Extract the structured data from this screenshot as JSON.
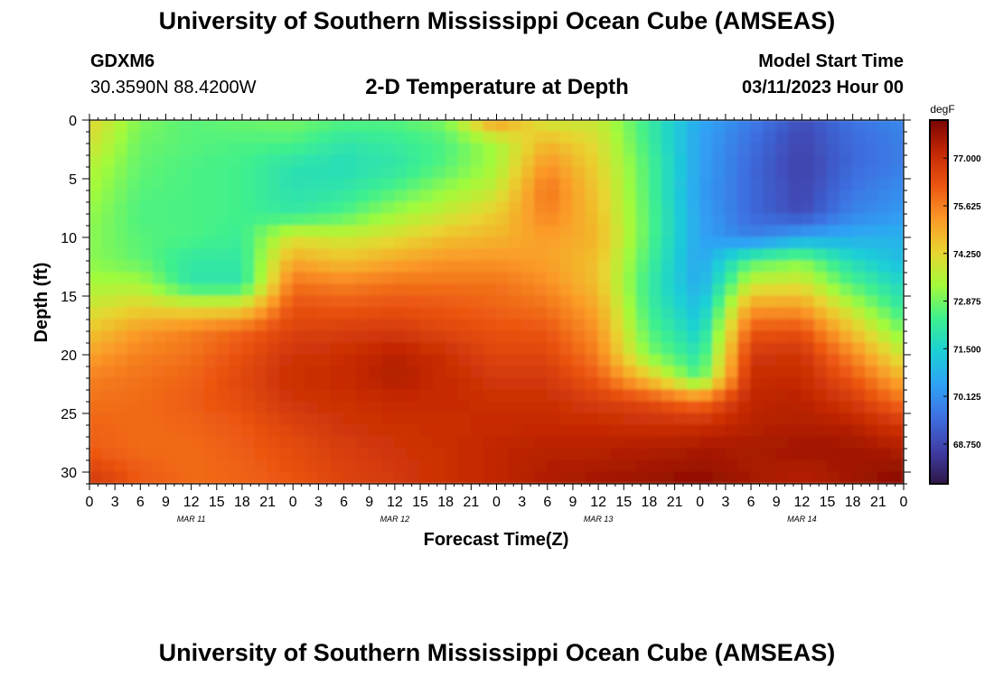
{
  "page": {
    "title_top": "University of Southern Mississippi Ocean Cube (AMSEAS)",
    "title_bottom": "University of Southern Mississippi Ocean Cube (AMSEAS)",
    "station_id": "GDXM6",
    "station_coords": "30.3590N  88.4200W",
    "model_start_label": "Model Start Time",
    "model_start_value": "03/11/2023 Hour 00",
    "chart_title": "2-D Temperature at Depth"
  },
  "chart_data": {
    "type": "heatmap",
    "title": "2-D Temperature at Depth",
    "xlabel": "Forecast Time(Z)",
    "ylabel": "Depth (ft)",
    "x_tick_labels": [
      "0",
      "3",
      "6",
      "9",
      "12",
      "15",
      "18",
      "21",
      "0",
      "3",
      "6",
      "9",
      "12",
      "15",
      "18",
      "21",
      "0",
      "3",
      "6",
      "9",
      "12",
      "15",
      "18",
      "21",
      "0",
      "3",
      "6",
      "9",
      "12",
      "15",
      "18",
      "21",
      "0"
    ],
    "x_range_hours": [
      0,
      96
    ],
    "day_labels": [
      {
        "label": "MAR 11",
        "hour": 12
      },
      {
        "label": "MAR 12",
        "hour": 36
      },
      {
        "label": "MAR 13",
        "hour": 60
      },
      {
        "label": "MAR 14",
        "hour": 84
      }
    ],
    "y_ticks": [
      0,
      5,
      10,
      15,
      20,
      25,
      30
    ],
    "y_range_ft": [
      0,
      31
    ],
    "colorbar": {
      "unit": "degF",
      "range": [
        67.6,
        78.1
      ],
      "ticks": [
        "77.000",
        "75.625",
        "74.250",
        "72.875",
        "71.500",
        "70.125",
        "68.750"
      ],
      "colors": [
        "#2e1747",
        "#3f3da6",
        "#3e6fe0",
        "#2fa2f5",
        "#1bd0d5",
        "#3ef08e",
        "#a3fb3a",
        "#e8d530",
        "#fb9a28",
        "#ec5611",
        "#c42803",
        "#7a0403"
      ]
    },
    "depths_ft": [
      0,
      2,
      4,
      6,
      8,
      10,
      12,
      14,
      16,
      18,
      20,
      22,
      24,
      26,
      28,
      30,
      31
    ],
    "times_h": [
      0,
      6,
      12,
      18,
      24,
      30,
      36,
      42,
      48,
      54,
      60,
      66,
      72,
      78,
      84,
      90,
      96
    ],
    "values_degF": [
      [
        74.3,
        73.0,
        72.6,
        72.8,
        72.9,
        72.6,
        72.6,
        73.0,
        75.4,
        73.8,
        73.8,
        72.2,
        70.6,
        69.8,
        68.9,
        69.6,
        70.0
      ],
      [
        74.0,
        72.8,
        72.6,
        72.5,
        72.5,
        72.0,
        72.2,
        72.5,
        73.4,
        74.8,
        74.1,
        72.3,
        70.5,
        69.5,
        68.7,
        69.4,
        69.8
      ],
      [
        73.6,
        72.7,
        72.5,
        72.4,
        71.9,
        71.8,
        72.0,
        72.6,
        73.4,
        75.4,
        74.3,
        72.5,
        70.5,
        69.4,
        68.6,
        69.4,
        69.8
      ],
      [
        73.4,
        72.6,
        72.5,
        72.4,
        71.9,
        72.0,
        72.5,
        73.2,
        73.8,
        75.8,
        74.5,
        72.5,
        70.4,
        69.4,
        68.7,
        69.6,
        70.1
      ],
      [
        73.2,
        72.5,
        72.5,
        72.4,
        72.1,
        72.5,
        73.3,
        73.8,
        74.4,
        75.6,
        74.6,
        72.6,
        70.5,
        69.4,
        68.8,
        69.9,
        70.3
      ],
      [
        73.1,
        72.6,
        72.5,
        72.3,
        74.0,
        73.8,
        74.1,
        74.6,
        74.8,
        75.2,
        74.8,
        72.6,
        70.5,
        69.8,
        70.5,
        70.7,
        70.8
      ],
      [
        73.1,
        72.7,
        72.1,
        72.1,
        75.0,
        74.6,
        75.0,
        75.3,
        75.3,
        75.1,
        74.6,
        72.4,
        70.5,
        72.5,
        73.0,
        71.7,
        71.0
      ],
      [
        73.4,
        73.4,
        72.0,
        72.0,
        75.8,
        75.6,
        75.8,
        75.8,
        75.8,
        75.4,
        74.6,
        72.2,
        70.6,
        73.8,
        74.0,
        72.5,
        71.6
      ],
      [
        73.9,
        74.3,
        74.1,
        74.2,
        76.3,
        76.2,
        76.3,
        76.2,
        76.0,
        75.8,
        75.0,
        72.3,
        71.0,
        75.2,
        75.2,
        73.6,
        72.1
      ],
      [
        74.5,
        75.2,
        75.6,
        76.0,
        76.6,
        76.7,
        76.8,
        76.5,
        76.3,
        76.2,
        75.3,
        72.6,
        71.4,
        76.2,
        76.3,
        74.6,
        72.9
      ],
      [
        75.1,
        75.6,
        75.8,
        76.3,
        76.9,
        77.0,
        77.3,
        77.0,
        76.5,
        76.5,
        75.6,
        73.0,
        71.9,
        76.8,
        76.9,
        75.5,
        73.8
      ],
      [
        75.6,
        75.8,
        76.0,
        76.5,
        77.0,
        77.1,
        77.4,
        77.1,
        76.8,
        76.8,
        76.1,
        74.5,
        72.5,
        77.1,
        77.1,
        76.2,
        74.8
      ],
      [
        75.8,
        75.9,
        76.1,
        76.4,
        76.9,
        77.0,
        77.1,
        77.1,
        77.0,
        77.0,
        76.7,
        76.4,
        75.8,
        77.2,
        77.3,
        76.8,
        75.8
      ],
      [
        76.0,
        75.9,
        76.0,
        76.2,
        76.6,
        76.9,
        77.0,
        77.0,
        77.1,
        77.1,
        77.1,
        77.0,
        77.0,
        77.3,
        77.4,
        77.3,
        76.8
      ],
      [
        76.1,
        75.9,
        75.9,
        76.1,
        76.4,
        76.7,
        76.9,
        77.0,
        77.2,
        77.3,
        77.3,
        77.4,
        77.5,
        77.5,
        77.6,
        77.6,
        77.4
      ],
      [
        76.6,
        76.1,
        75.9,
        76.0,
        76.3,
        76.6,
        76.8,
        77.0,
        77.2,
        77.4,
        77.5,
        77.6,
        77.7,
        77.5,
        77.4,
        77.6,
        77.8
      ],
      [
        76.9,
        76.2,
        75.9,
        76.0,
        76.2,
        76.6,
        76.8,
        77.0,
        77.2,
        77.4,
        77.6,
        77.7,
        77.9,
        77.6,
        77.3,
        77.6,
        77.9
      ]
    ]
  }
}
